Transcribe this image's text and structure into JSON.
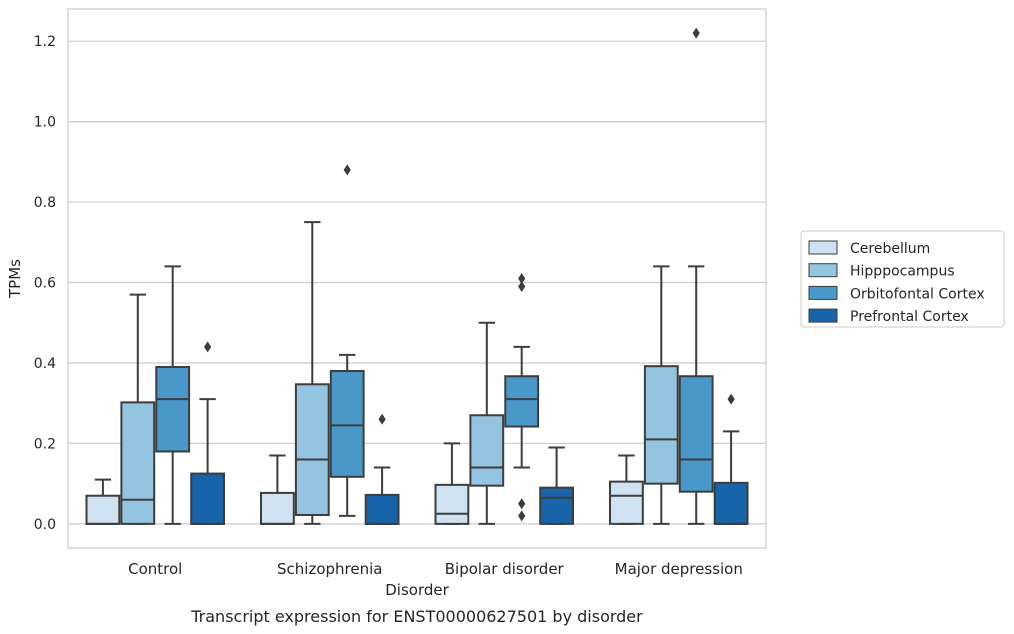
{
  "chart_data": {
    "type": "box",
    "title": "",
    "xlabel": "Disorder",
    "ylabel": "TPMs",
    "caption": "Transcript expression for ENST00000627501 by disorder",
    "ylim": [
      -0.06,
      1.28
    ],
    "yticks": [
      0.0,
      0.2,
      0.4,
      0.6,
      0.8,
      1.0,
      1.2
    ],
    "ytick_labels": [
      "0.0",
      "0.2",
      "0.4",
      "0.6",
      "0.8",
      "1.0",
      "1.2"
    ],
    "grid": "y",
    "legend_position": "right",
    "categories": [
      "Control",
      "Schizophrenia",
      "Bipolar disorder",
      "Major depression"
    ],
    "series": [
      {
        "name": "Cerebellum",
        "color": "#d0e1f2",
        "boxes": [
          {
            "whislo": 0.0,
            "q1": 0.0,
            "med": 0.0,
            "q3": 0.07,
            "whishi": 0.11,
            "fliers": []
          },
          {
            "whislo": 0.0,
            "q1": 0.0,
            "med": 0.0,
            "q3": 0.077,
            "whishi": 0.17,
            "fliers": []
          },
          {
            "whislo": 0.0,
            "q1": 0.0,
            "med": 0.025,
            "q3": 0.097,
            "whishi": 0.2,
            "fliers": []
          },
          {
            "whislo": 0.0,
            "q1": 0.0,
            "med": 0.07,
            "q3": 0.105,
            "whishi": 0.17,
            "fliers": []
          }
        ]
      },
      {
        "name": "Hipppocampus",
        "color": "#94c4df",
        "boxes": [
          {
            "whislo": 0.0,
            "q1": 0.0,
            "med": 0.06,
            "q3": 0.302,
            "whishi": 0.57,
            "fliers": []
          },
          {
            "whislo": 0.0,
            "q1": 0.022,
            "med": 0.16,
            "q3": 0.347,
            "whishi": 0.75,
            "fliers": []
          },
          {
            "whislo": 0.0,
            "q1": 0.095,
            "med": 0.14,
            "q3": 0.27,
            "whishi": 0.5,
            "fliers": []
          },
          {
            "whislo": 0.0,
            "q1": 0.1,
            "med": 0.21,
            "q3": 0.392,
            "whishi": 0.64,
            "fliers": []
          }
        ]
      },
      {
        "name": "Orbitofontal Cortex",
        "color": "#4a98c9",
        "boxes": [
          {
            "whislo": 0.0,
            "q1": 0.18,
            "med": 0.31,
            "q3": 0.39,
            "whishi": 0.64,
            "fliers": []
          },
          {
            "whislo": 0.02,
            "q1": 0.117,
            "med": 0.245,
            "q3": 0.38,
            "whishi": 0.42,
            "fliers": [
              0.88
            ]
          },
          {
            "whislo": 0.14,
            "q1": 0.242,
            "med": 0.31,
            "q3": 0.367,
            "whishi": 0.44,
            "fliers": [
              0.05,
              0.02,
              0.61,
              0.59
            ]
          },
          {
            "whislo": 0.0,
            "q1": 0.08,
            "med": 0.16,
            "q3": 0.367,
            "whishi": 0.64,
            "fliers": [
              1.22
            ]
          }
        ]
      },
      {
        "name": "Prefrontal Cortex",
        "color": "#1764ab",
        "boxes": [
          {
            "whislo": 0.0,
            "q1": 0.0,
            "med": 0.0,
            "q3": 0.125,
            "whishi": 0.31,
            "fliers": [
              0.44
            ]
          },
          {
            "whislo": 0.0,
            "q1": 0.0,
            "med": 0.0,
            "q3": 0.072,
            "whishi": 0.14,
            "fliers": [
              0.26
            ]
          },
          {
            "whislo": 0.0,
            "q1": 0.0,
            "med": 0.065,
            "q3": 0.09,
            "whishi": 0.19,
            "fliers": []
          },
          {
            "whislo": 0.0,
            "q1": 0.0,
            "med": 0.0,
            "q3": 0.102,
            "whishi": 0.23,
            "fliers": [
              0.31
            ]
          }
        ]
      }
    ]
  }
}
